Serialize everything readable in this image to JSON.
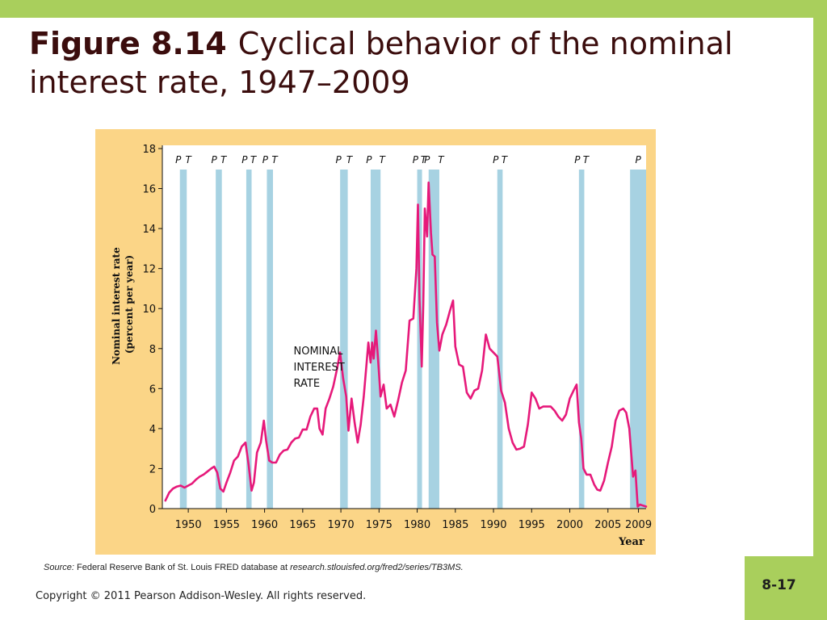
{
  "slide": {
    "title_figure": "Figure 8.14",
    "title_text": "Cyclical behavior of the nominal interest rate, 1947–2009",
    "source_label": "Source:",
    "source_text": "Federal Reserve Bank of St. Louis FRED database at",
    "source_url": "research.stlouisfed.org/fred2/series/TB3MS.",
    "copyright": "Copyright © 2011 Pearson Addison-Wesley. All rights reserved.",
    "page_number": "8-17"
  },
  "colors": {
    "accent_bar": "#a9cf5c",
    "panel_background": "#fbd587",
    "recession_band": "#a7d2e2",
    "series_line": "#e6197a",
    "title_text": "#3b0d0d"
  },
  "chart_data": {
    "type": "line",
    "xlabel": "Year",
    "ylabel_line1": "Nominal interest rate",
    "ylabel_line2": "(percent per year)",
    "xlim": [
      1946.6,
      2010.0
    ],
    "ylim": [
      0,
      18
    ],
    "x_ticks": [
      1950,
      1955,
      1960,
      1965,
      1970,
      1975,
      1980,
      1985,
      1990,
      1995,
      2000,
      2005,
      2009
    ],
    "y_ticks": [
      0,
      2,
      4,
      6,
      8,
      10,
      12,
      14,
      16,
      18
    ],
    "grid": false,
    "annotation": [
      "NOMINAL",
      "INTEREST",
      "RATE"
    ],
    "annotation_at": {
      "x": 1963.8,
      "y": 7.7
    },
    "recessions": [
      {
        "start": 1948.9,
        "end": 1949.8,
        "labels": [
          "P",
          "T"
        ]
      },
      {
        "start": 1953.6,
        "end": 1954.4,
        "labels": [
          "P",
          "T"
        ]
      },
      {
        "start": 1957.6,
        "end": 1958.3,
        "labels": [
          "P",
          "T"
        ]
      },
      {
        "start": 1960.3,
        "end": 1961.1,
        "labels": [
          "P",
          "T"
        ]
      },
      {
        "start": 1969.9,
        "end": 1970.9,
        "labels": [
          "P",
          "T"
        ]
      },
      {
        "start": 1973.9,
        "end": 1975.2,
        "labels": [
          "P",
          "T"
        ]
      },
      {
        "start": 1980.0,
        "end": 1980.6,
        "labels": [
          "P",
          "T"
        ]
      },
      {
        "start": 1981.5,
        "end": 1982.9,
        "labels": [
          "P",
          "T"
        ]
      },
      {
        "start": 1990.5,
        "end": 1991.2,
        "labels": [
          "P",
          "T"
        ]
      },
      {
        "start": 2001.2,
        "end": 2001.9,
        "labels": [
          "P",
          "T"
        ]
      },
      {
        "start": 2007.9,
        "end": 2010.0,
        "labels": [
          "P"
        ]
      }
    ],
    "series": [
      {
        "x": [
          1947.0,
          1947.5,
          1948.0,
          1948.5,
          1949.0,
          1949.5,
          1950.0,
          1950.5,
          1951.0,
          1951.5,
          1952.0,
          1952.5,
          1953.0,
          1953.4,
          1953.8,
          1954.2,
          1954.6,
          1955.0,
          1955.5,
          1956.0,
          1956.5,
          1957.0,
          1957.5,
          1957.9,
          1958.3,
          1958.6,
          1959.0,
          1959.5,
          1959.9,
          1960.2,
          1960.6,
          1961.0,
          1961.5,
          1962.0,
          1962.5,
          1963.0,
          1963.5,
          1964.0,
          1964.5,
          1965.0,
          1965.5,
          1966.0,
          1966.5,
          1966.9,
          1967.2,
          1967.6,
          1968.0,
          1968.5,
          1969.0,
          1969.5,
          1969.9,
          1970.3,
          1970.7,
          1971.0,
          1971.4,
          1971.8,
          1972.2,
          1972.6,
          1973.0,
          1973.4,
          1973.6,
          1973.9,
          1974.1,
          1974.3,
          1974.6,
          1974.9,
          1975.2,
          1975.6,
          1976.0,
          1976.5,
          1977.0,
          1977.5,
          1978.0,
          1978.5,
          1979.0,
          1979.5,
          1979.9,
          1980.1,
          1980.3,
          1980.6,
          1980.8,
          1981.0,
          1981.3,
          1981.5,
          1981.8,
          1982.0,
          1982.3,
          1982.6,
          1982.9,
          1983.3,
          1983.8,
          1984.3,
          1984.7,
          1985.0,
          1985.5,
          1986.0,
          1986.5,
          1987.0,
          1987.5,
          1988.0,
          1988.5,
          1989.0,
          1989.5,
          1990.0,
          1990.5,
          1991.0,
          1991.5,
          1992.0,
          1992.5,
          1993.0,
          1993.5,
          1994.0,
          1994.5,
          1995.0,
          1995.5,
          1996.0,
          1996.5,
          1997.0,
          1997.5,
          1998.0,
          1998.5,
          1999.0,
          1999.5,
          2000.0,
          2000.5,
          2000.9,
          2001.2,
          2001.5,
          2001.8,
          2002.2,
          2002.7,
          2003.2,
          2003.6,
          2004.0,
          2004.5,
          2005.0,
          2005.5,
          2006.0,
          2006.5,
          2007.0,
          2007.4,
          2007.8,
          2008.0,
          2008.3,
          2008.6,
          2008.9,
          2009.2,
          2009.6,
          2010.0
        ],
        "y": [
          0.4,
          0.8,
          1.0,
          1.1,
          1.15,
          1.05,
          1.15,
          1.25,
          1.45,
          1.6,
          1.7,
          1.85,
          2.0,
          2.1,
          1.8,
          1.0,
          0.85,
          1.3,
          1.8,
          2.4,
          2.6,
          3.1,
          3.3,
          2.2,
          0.9,
          1.3,
          2.8,
          3.3,
          4.4,
          3.4,
          2.4,
          2.3,
          2.3,
          2.7,
          2.9,
          2.95,
          3.3,
          3.5,
          3.55,
          3.95,
          3.95,
          4.6,
          5.0,
          5.0,
          4.0,
          3.7,
          5.0,
          5.5,
          6.1,
          7.0,
          7.8,
          6.5,
          5.6,
          3.9,
          5.5,
          4.3,
          3.3,
          4.2,
          5.6,
          7.4,
          8.3,
          7.3,
          8.3,
          7.5,
          8.9,
          7.3,
          5.6,
          6.2,
          5.0,
          5.2,
          4.6,
          5.4,
          6.3,
          6.9,
          9.4,
          9.5,
          12.0,
          15.2,
          10.5,
          7.1,
          10.2,
          15.0,
          13.6,
          16.3,
          13.8,
          12.7,
          12.6,
          9.3,
          7.9,
          8.7,
          9.2,
          9.9,
          10.4,
          8.1,
          7.2,
          7.1,
          5.8,
          5.5,
          5.9,
          6.0,
          6.9,
          8.7,
          8.0,
          7.8,
          7.6,
          5.9,
          5.3,
          4.0,
          3.3,
          2.95,
          3.0,
          3.1,
          4.2,
          5.8,
          5.5,
          5.0,
          5.1,
          5.1,
          5.1,
          4.9,
          4.6,
          4.4,
          4.7,
          5.5,
          5.9,
          6.2,
          4.3,
          3.5,
          2.0,
          1.7,
          1.7,
          1.2,
          0.95,
          0.9,
          1.4,
          2.3,
          3.1,
          4.4,
          4.9,
          5.0,
          4.8,
          4.0,
          3.0,
          1.6,
          1.9,
          0.1,
          0.2,
          0.15,
          0.1
        ]
      }
    ]
  }
}
